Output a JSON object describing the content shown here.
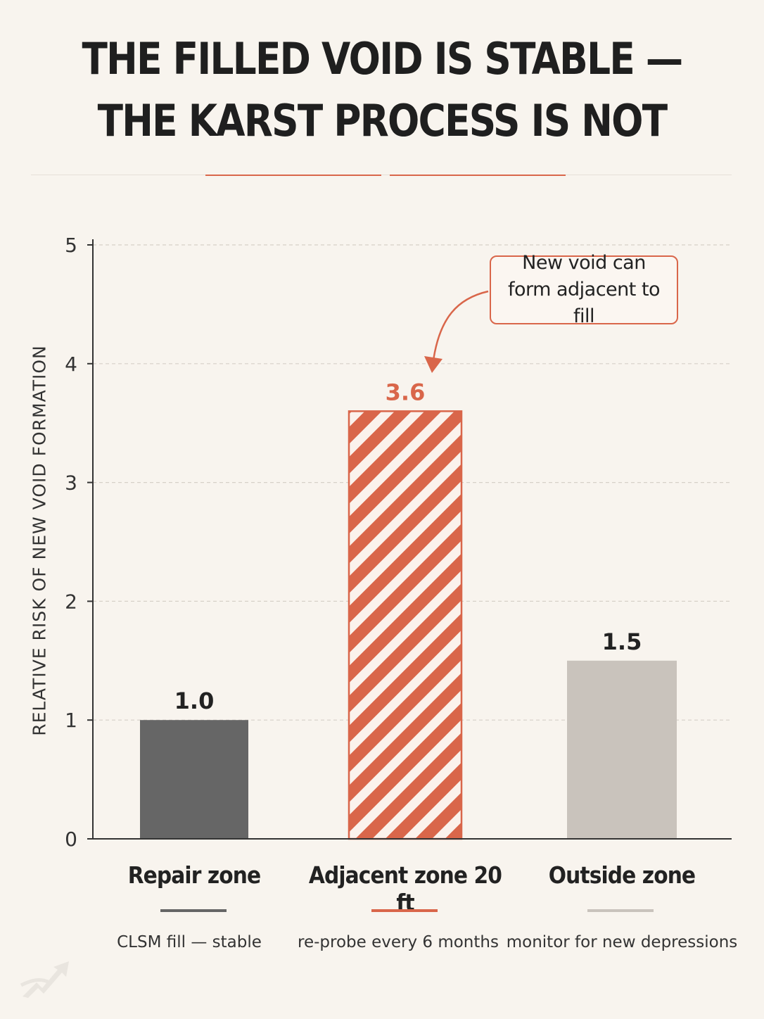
{
  "title": {
    "line1": "THE FILLED VOID IS STABLE —",
    "line2": "THE KARST PROCESS IS NOT"
  },
  "callout": {
    "line1": "New void can",
    "line2": "form adjacent to fill"
  },
  "colors": {
    "background": "#f8f4ee",
    "accent": "#d9664a",
    "repair_bar": "#666666",
    "outside_bar": "#c9c3bc",
    "grid": "#d6d0c8"
  },
  "chart_data": {
    "type": "bar",
    "ylabel": "RELATIVE RISK OF NEW VOID FORMATION",
    "xlabel": "",
    "ylim": [
      0,
      5
    ],
    "yticks": [
      0,
      1,
      2,
      3,
      4,
      5
    ],
    "grid": true,
    "categories": [
      "Repair zone",
      "Adjacent zone 20 ft",
      "Outside zone"
    ],
    "values": [
      1.0,
      3.6,
      1.5
    ],
    "value_labels": [
      "1.0",
      "3.6",
      "1.5"
    ],
    "notes": [
      "CLSM fill — stable",
      "re-probe every 6 months",
      "monitor for new depressions"
    ],
    "bar_colors": [
      "#666666",
      "hatched-#d9664a",
      "#c9c3bc"
    ],
    "label_colors": [
      "#222222",
      "#d9664a",
      "#222222"
    ]
  }
}
